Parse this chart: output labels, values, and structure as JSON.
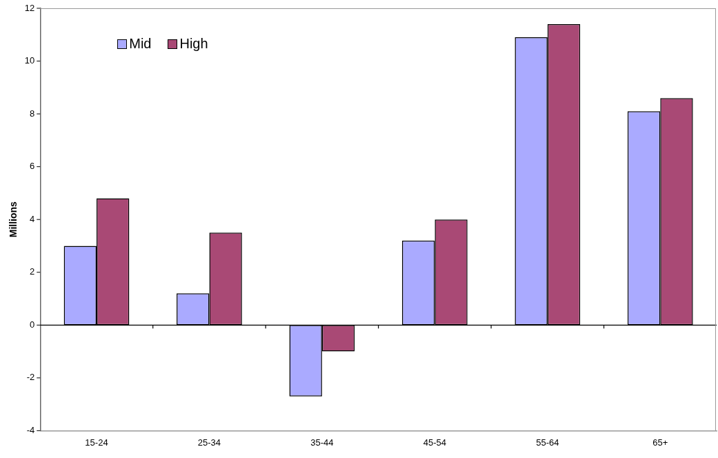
{
  "chart_data": {
    "type": "bar",
    "ylabel": "Millions",
    "categories": [
      "15-24",
      "25-34",
      "35-44",
      "45-54",
      "55-64",
      "65+"
    ],
    "series": [
      {
        "name": "Mid",
        "color": "#aaaaff",
        "values": [
          3.0,
          1.2,
          -2.7,
          3.2,
          10.9,
          8.1
        ]
      },
      {
        "name": "High",
        "color": "#a94975",
        "values": [
          4.8,
          3.5,
          -1.0,
          4.0,
          11.4,
          8.6
        ]
      }
    ],
    "ref_lines": [
      {
        "axis": "y",
        "value": 0,
        "color": "#000000"
      }
    ],
    "ylim": [
      -4,
      12
    ],
    "yticks": [
      -4,
      -2,
      0,
      2,
      4,
      6,
      8,
      10,
      12
    ],
    "grid": false,
    "legend": "top left"
  }
}
